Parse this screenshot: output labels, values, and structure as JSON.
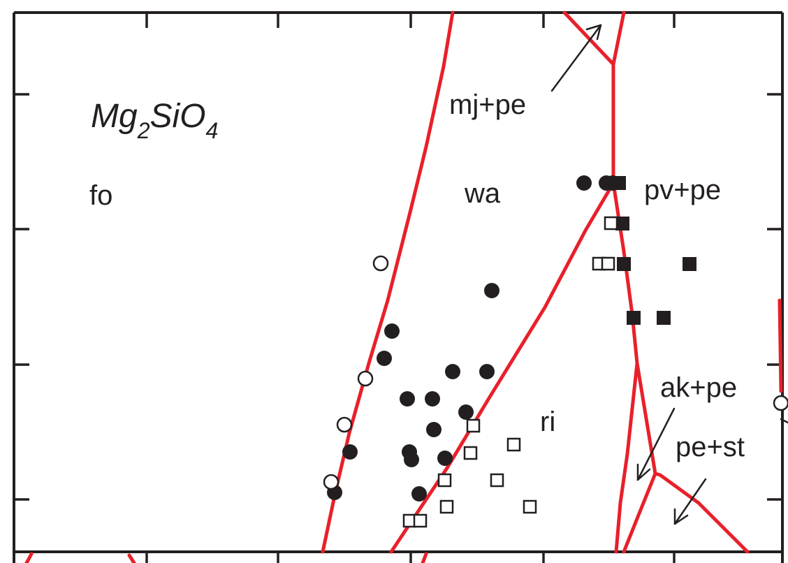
{
  "title": {
    "main1": "Mg",
    "sub1": "2",
    "main2": "SiO",
    "sub2": "4"
  },
  "phases": {
    "fo": "fo",
    "wa": "wa",
    "ri": "ri",
    "pv_pe": "pv+pe",
    "mj_pe": "mj+pe",
    "ak_pe": "ak+pe",
    "pe_st": "pe+st"
  },
  "colors": {
    "boundary": "#e8202a",
    "ink": "#231f20",
    "background": "#ffffff"
  },
  "legend_symbols": {
    "filled_circle": "wadsleyite (observed)",
    "open_circle": "forsterite (observed)",
    "open_square": "ringwoodite (observed)",
    "filled_square": "perovskite + periclase (observed)"
  }
}
